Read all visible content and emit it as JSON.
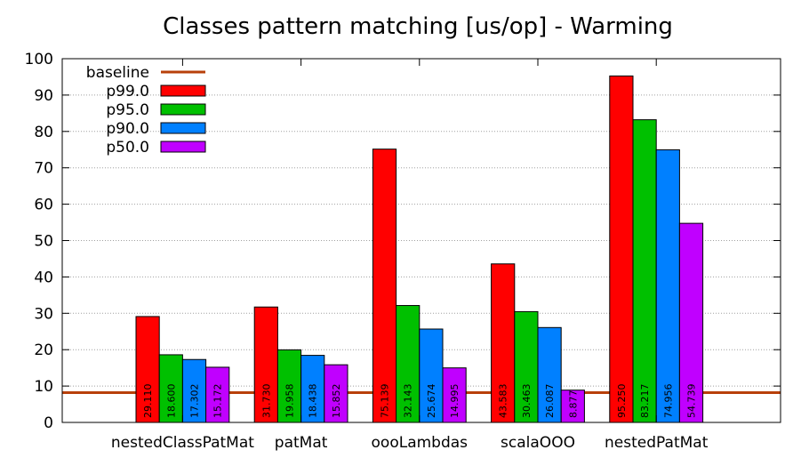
{
  "chart_data": {
    "type": "bar",
    "title": "Classes pattern matching [us/op] - Warming",
    "xlabel": "",
    "ylabel": "",
    "ylim": [
      0,
      100
    ],
    "yticks": [
      0,
      10,
      20,
      30,
      40,
      50,
      60,
      70,
      80,
      90,
      100
    ],
    "grid": true,
    "legend_position": "top-left",
    "categories": [
      "nestedClassPatMat",
      "patMat",
      "oooLambdas",
      "scalaOOO",
      "nestedPatMat"
    ],
    "baseline": {
      "name": "baseline",
      "value": 8.2,
      "color": "#b8400a"
    },
    "series": [
      {
        "name": "p99.0",
        "color": "#ff0000",
        "values": [
          29.11,
          31.73,
          75.139,
          43.583,
          95.25
        ],
        "labels": [
          "29.110",
          "31.730",
          "75.139",
          "43.583",
          "95.250"
        ]
      },
      {
        "name": "p95.0",
        "color": "#00c000",
        "values": [
          18.6,
          19.958,
          32.143,
          30.463,
          83.217
        ],
        "labels": [
          "18.600",
          "19.958",
          "32.143",
          "30.463",
          "83.217"
        ]
      },
      {
        "name": "p90.0",
        "color": "#0080ff",
        "values": [
          17.302,
          18.438,
          25.674,
          26.087,
          74.956
        ],
        "labels": [
          "17.302",
          "18.438",
          "25.674",
          "26.087",
          "74.956"
        ]
      },
      {
        "name": "p50.0",
        "color": "#c000ff",
        "values": [
          15.172,
          15.852,
          14.995,
          8.877,
          54.739
        ],
        "labels": [
          "15.172",
          "15.852",
          "14.995",
          "8.877",
          "54.739"
        ]
      }
    ]
  }
}
